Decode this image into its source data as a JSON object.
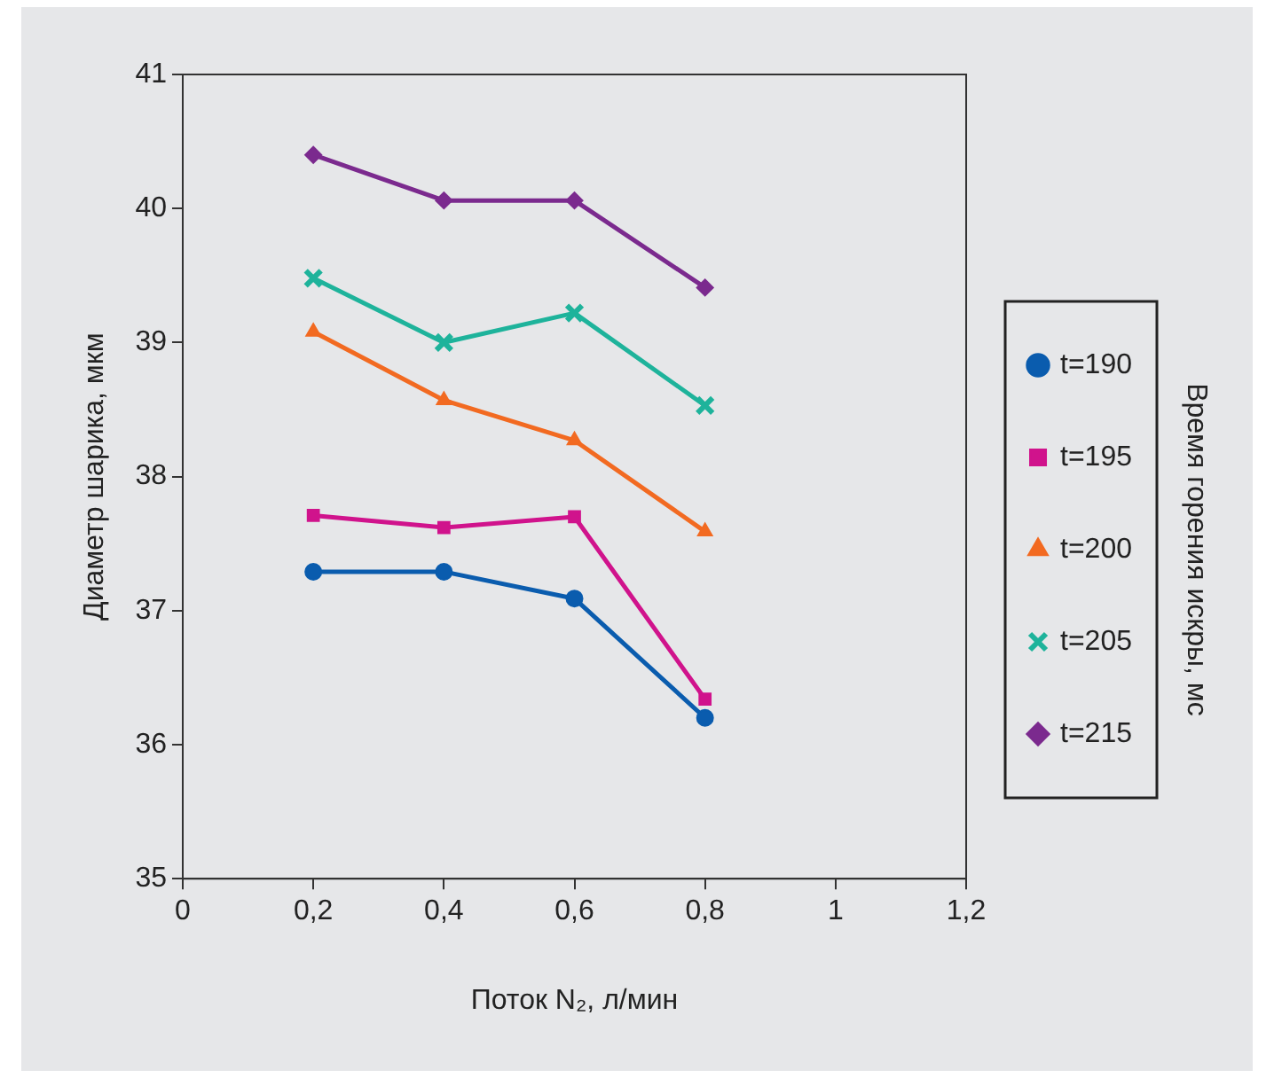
{
  "chart_data": {
    "type": "line",
    "xlabel": "Поток N₂, л/мин",
    "ylabel": "Диаметр шарика, мкм",
    "legend_title": "Время горения искры, мс",
    "x": [
      0.2,
      0.4,
      0.6,
      0.8
    ],
    "series": [
      {
        "name": "t=190",
        "color": "#0a5cae",
        "marker": "circle",
        "values": [
          37.29,
          37.29,
          37.09,
          36.2
        ]
      },
      {
        "name": "t=195",
        "color": "#d0138c",
        "marker": "square",
        "values": [
          37.71,
          37.62,
          37.7,
          36.34
        ]
      },
      {
        "name": "t=200",
        "color": "#f26a21",
        "marker": "triangle",
        "values": [
          39.08,
          38.57,
          38.27,
          37.59
        ]
      },
      {
        "name": "t=205",
        "color": "#1eb39b",
        "marker": "cross",
        "values": [
          39.48,
          39.0,
          39.22,
          38.53
        ]
      },
      {
        "name": "t=215",
        "color": "#7b2a8e",
        "marker": "diamond",
        "values": [
          40.4,
          40.06,
          40.06,
          39.41
        ]
      }
    ],
    "xlim": [
      0,
      1.2
    ],
    "xticks": [
      0,
      {
        "value": 0.2,
        "label": "0,2"
      },
      {
        "value": 0.4,
        "label": "0,4"
      },
      {
        "value": 0.6,
        "label": "0,6"
      },
      {
        "value": 0.8,
        "label": "0,8"
      },
      1,
      {
        "value": 1.2,
        "label": "1,2"
      }
    ],
    "ylim": [
      35,
      41
    ],
    "yticks": [
      35,
      36,
      37,
      38,
      39,
      40,
      41
    ],
    "grid": false,
    "legend": "right",
    "line_style": "solid"
  }
}
